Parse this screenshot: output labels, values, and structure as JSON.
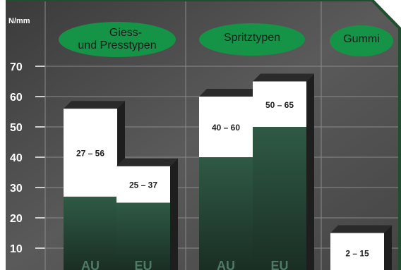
{
  "chart_data": {
    "type": "bar",
    "ylabel": "N/mm",
    "yticks": [
      10,
      20,
      30,
      40,
      50,
      60,
      70
    ],
    "ylim": [
      0,
      80
    ],
    "grid": true,
    "groups": [
      {
        "label_lines": [
          "Giess-",
          "und Presstypen"
        ],
        "bars": [
          {
            "category": "AU",
            "low": 27,
            "high": 56,
            "range_label": "27 – 56"
          },
          {
            "category": "EU",
            "low": 25,
            "high": 37,
            "range_label": "25 – 37"
          }
        ]
      },
      {
        "label_lines": [
          "Spritztypen"
        ],
        "bars": [
          {
            "category": "AU",
            "low": 40,
            "high": 60,
            "range_label": "40 – 60"
          },
          {
            "category": "EU",
            "low": 50,
            "high": 65,
            "range_label": "50 – 65"
          }
        ]
      },
      {
        "label_lines": [
          "Gummi"
        ],
        "bars": [
          {
            "category": "",
            "low": 2,
            "high": 15,
            "range_label": "2 – 15"
          }
        ]
      }
    ],
    "colors": {
      "background": "#4a4a4a",
      "grid": "#8a8a8a",
      "bar_low": "#2f5a45",
      "bar_range": "#ffffff",
      "bar_side": "#1e1e1e",
      "group_oval": "#159447",
      "frame": "#1f4f2e"
    }
  }
}
